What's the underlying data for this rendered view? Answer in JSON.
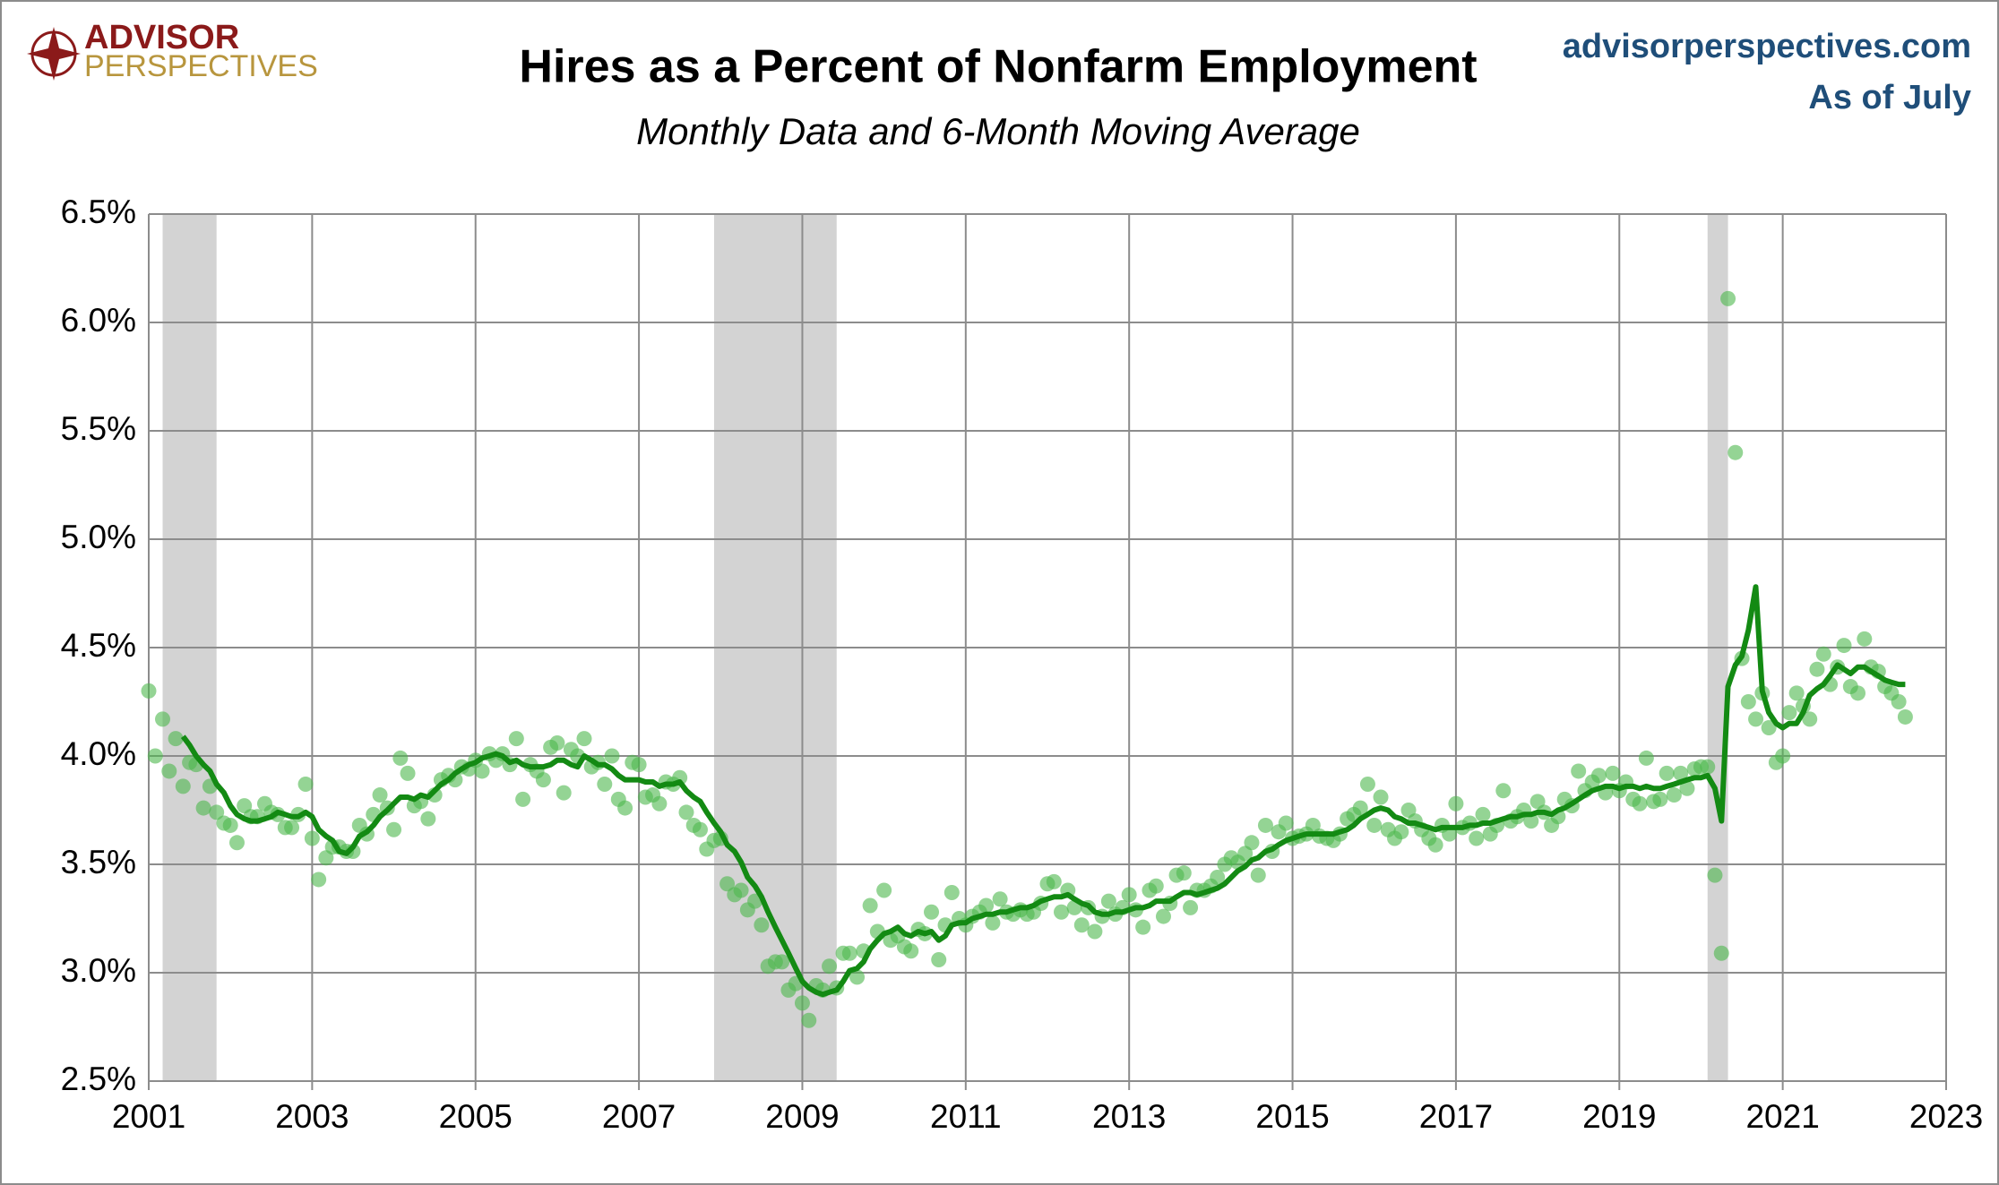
{
  "logo": {
    "line1": "ADVISOR",
    "line2": "PERSPECTIVES"
  },
  "site": "advisorperspectives.com",
  "as_of": "As of July",
  "chart_data": {
    "type": "scatter",
    "title": "Hires as a Percent of Nonfarm Employment",
    "subtitle": "Monthly Data and 6-Month Moving Average",
    "xlim": [
      2001,
      2023
    ],
    "xticks": [
      2001,
      2003,
      2005,
      2007,
      2009,
      2011,
      2013,
      2015,
      2017,
      2019,
      2021,
      2023
    ],
    "ylim": [
      2.5,
      6.5
    ],
    "yticks": [
      {
        "value": 2.5,
        "label": "2.5%"
      },
      {
        "value": 3.0,
        "label": "3.0%"
      },
      {
        "value": 3.5,
        "label": "3.5%"
      },
      {
        "value": 4.0,
        "label": "4.0%"
      },
      {
        "value": 4.5,
        "label": "4.5%"
      },
      {
        "value": 5.0,
        "label": "5.0%"
      },
      {
        "value": 5.5,
        "label": "5.5%"
      },
      {
        "value": 6.0,
        "label": "6.0%"
      },
      {
        "value": 6.5,
        "label": "6.5%"
      }
    ],
    "grid": true,
    "recessions": [
      [
        2001.17,
        2001.83
      ],
      [
        2007.92,
        2009.42
      ],
      [
        2020.08,
        2020.33
      ]
    ],
    "recession_color": "#d3d3d3",
    "x": [
      2001,
      2001.08,
      2001.17,
      2001.25,
      2001.33,
      2001.42,
      2001.5,
      2001.58,
      2001.67,
      2001.75,
      2001.83,
      2001.92,
      2002,
      2002.08,
      2002.17,
      2002.25,
      2002.33,
      2002.42,
      2002.5,
      2002.58,
      2002.67,
      2002.75,
      2002.83,
      2002.92,
      2003,
      2003.08,
      2003.17,
      2003.25,
      2003.33,
      2003.42,
      2003.5,
      2003.58,
      2003.67,
      2003.75,
      2003.83,
      2003.92,
      2004,
      2004.08,
      2004.17,
      2004.25,
      2004.33,
      2004.42,
      2004.5,
      2004.58,
      2004.67,
      2004.75,
      2004.83,
      2004.92,
      2005,
      2005.08,
      2005.17,
      2005.25,
      2005.33,
      2005.42,
      2005.5,
      2005.58,
      2005.67,
      2005.75,
      2005.83,
      2005.92,
      2006,
      2006.08,
      2006.17,
      2006.25,
      2006.33,
      2006.42,
      2006.5,
      2006.58,
      2006.67,
      2006.75,
      2006.83,
      2006.92,
      2007,
      2007.08,
      2007.17,
      2007.25,
      2007.33,
      2007.42,
      2007.5,
      2007.58,
      2007.67,
      2007.75,
      2007.83,
      2007.92,
      2008,
      2008.08,
      2008.17,
      2008.25,
      2008.33,
      2008.42,
      2008.5,
      2008.58,
      2008.67,
      2008.75,
      2008.83,
      2008.92,
      2009,
      2009.08,
      2009.17,
      2009.25,
      2009.33,
      2009.42,
      2009.5,
      2009.58,
      2009.67,
      2009.75,
      2009.83,
      2009.92,
      2010,
      2010.08,
      2010.17,
      2010.25,
      2010.33,
      2010.42,
      2010.5,
      2010.58,
      2010.67,
      2010.75,
      2010.83,
      2010.92,
      2011,
      2011.08,
      2011.17,
      2011.25,
      2011.33,
      2011.42,
      2011.5,
      2011.58,
      2011.67,
      2011.75,
      2011.83,
      2011.92,
      2012,
      2012.08,
      2012.17,
      2012.25,
      2012.33,
      2012.42,
      2012.5,
      2012.58,
      2012.67,
      2012.75,
      2012.83,
      2012.92,
      2013,
      2013.08,
      2013.17,
      2013.25,
      2013.33,
      2013.42,
      2013.5,
      2013.58,
      2013.67,
      2013.75,
      2013.83,
      2013.92,
      2014,
      2014.08,
      2014.17,
      2014.25,
      2014.33,
      2014.42,
      2014.5,
      2014.58,
      2014.67,
      2014.75,
      2014.83,
      2014.92,
      2015,
      2015.08,
      2015.17,
      2015.25,
      2015.33,
      2015.42,
      2015.5,
      2015.58,
      2015.67,
      2015.75,
      2015.83,
      2015.92,
      2016,
      2016.08,
      2016.17,
      2016.25,
      2016.33,
      2016.42,
      2016.5,
      2016.58,
      2016.67,
      2016.75,
      2016.83,
      2016.92,
      2017,
      2017.08,
      2017.17,
      2017.25,
      2017.33,
      2017.42,
      2017.5,
      2017.58,
      2017.67,
      2017.75,
      2017.83,
      2017.92,
      2018,
      2018.08,
      2018.17,
      2018.25,
      2018.33,
      2018.42,
      2018.5,
      2018.58,
      2018.67,
      2018.75,
      2018.83,
      2018.92,
      2019,
      2019.08,
      2019.17,
      2019.25,
      2019.33,
      2019.42,
      2019.5,
      2019.58,
      2019.67,
      2019.75,
      2019.83,
      2019.92,
      2020,
      2020.08,
      2020.17,
      2020.25,
      2020.33,
      2020.42,
      2020.5,
      2020.58,
      2020.67,
      2020.75,
      2020.83,
      2020.92,
      2021,
      2021.08,
      2021.17,
      2021.25,
      2021.33,
      2021.42,
      2021.5,
      2021.58,
      2021.67,
      2021.75,
      2021.83,
      2021.92,
      2022,
      2022.08,
      2022.17,
      2022.25,
      2022.33,
      2022.42,
      2022.5
    ],
    "series": [
      {
        "name": "Monthly Data",
        "color": "#4cb84c",
        "style": "dots",
        "values": [
          4.3,
          4.0,
          4.17,
          3.93,
          4.08,
          3.86,
          3.97,
          3.96,
          3.76,
          3.86,
          3.74,
          3.69,
          3.68,
          3.6,
          3.77,
          3.72,
          3.72,
          3.78,
          3.74,
          3.73,
          3.67,
          3.67,
          3.73,
          3.87,
          3.62,
          3.43,
          3.53,
          3.58,
          3.58,
          3.56,
          3.56,
          3.68,
          3.64,
          3.73,
          3.82,
          3.76,
          3.66,
          3.99,
          3.92,
          3.77,
          3.79,
          3.71,
          3.82,
          3.89,
          3.91,
          3.89,
          3.95,
          3.94,
          3.98,
          3.93,
          4.01,
          3.98,
          4.01,
          3.96,
          4.08,
          3.8,
          3.96,
          3.93,
          3.89,
          4.04,
          4.06,
          3.83,
          4.03,
          4.0,
          4.08,
          3.95,
          3.97,
          3.87,
          4.0,
          3.8,
          3.76,
          3.97,
          3.96,
          3.81,
          3.82,
          3.78,
          3.88,
          3.87,
          3.9,
          3.74,
          3.68,
          3.66,
          3.57,
          3.61,
          3.62,
          3.41,
          3.36,
          3.38,
          3.29,
          3.33,
          3.22,
          3.03,
          3.05,
          3.05,
          2.92,
          2.95,
          2.86,
          2.78,
          2.94,
          2.92,
          3.03,
          2.93,
          3.09,
          3.09,
          2.98,
          3.1,
          3.31,
          3.19,
          3.38,
          3.15,
          3.17,
          3.12,
          3.1,
          3.2,
          3.18,
          3.28,
          3.06,
          3.22,
          3.37,
          3.25,
          3.22,
          3.26,
          3.28,
          3.31,
          3.23,
          3.34,
          3.28,
          3.27,
          3.29,
          3.27,
          3.28,
          3.32,
          3.41,
          3.42,
          3.28,
          3.38,
          3.3,
          3.22,
          3.3,
          3.19,
          3.26,
          3.33,
          3.27,
          3.3,
          3.36,
          3.29,
          3.21,
          3.38,
          3.4,
          3.26,
          3.32,
          3.45,
          3.46,
          3.3,
          3.38,
          3.38,
          3.4,
          3.44,
          3.5,
          3.53,
          3.51,
          3.55,
          3.6,
          3.45,
          3.68,
          3.56,
          3.65,
          3.69,
          3.62,
          3.63,
          3.64,
          3.68,
          3.63,
          3.62,
          3.61,
          3.64,
          3.71,
          3.73,
          3.76,
          3.87,
          3.68,
          3.81,
          3.66,
          3.62,
          3.65,
          3.75,
          3.7,
          3.66,
          3.62,
          3.59,
          3.68,
          3.64,
          3.78,
          3.67,
          3.69,
          3.62,
          3.73,
          3.64,
          3.68,
          3.84,
          3.7,
          3.72,
          3.75,
          3.7,
          3.79,
          3.74,
          3.68,
          3.72,
          3.8,
          3.77,
          3.93,
          3.84,
          3.88,
          3.91,
          3.83,
          3.92,
          3.84,
          3.88,
          3.8,
          3.78,
          3.99,
          3.79,
          3.8,
          3.92,
          3.82,
          3.92,
          3.85,
          3.94,
          3.95,
          3.95,
          3.45,
          3.09,
          6.11,
          5.4,
          4.45,
          4.25,
          4.17,
          4.29,
          4.13,
          3.97,
          4.0,
          4.2,
          4.29,
          4.23,
          4.17,
          4.4,
          4.47,
          4.33,
          4.41,
          4.51,
          4.32,
          4.29,
          4.54,
          4.41,
          4.39,
          4.32,
          4.29,
          4.25,
          4.18
        ]
      },
      {
        "name": "6-Month Moving Average",
        "color": "#138a13",
        "style": "line",
        "values": [
          null,
          null,
          null,
          null,
          null,
          4.09,
          4.05,
          4.0,
          3.96,
          3.93,
          3.87,
          3.83,
          3.77,
          3.73,
          3.71,
          3.7,
          3.7,
          3.71,
          3.72,
          3.74,
          3.73,
          3.72,
          3.72,
          3.74,
          3.72,
          3.66,
          3.63,
          3.61,
          3.56,
          3.55,
          3.58,
          3.63,
          3.65,
          3.68,
          3.72,
          3.75,
          3.78,
          3.81,
          3.81,
          3.8,
          3.82,
          3.81,
          3.84,
          3.87,
          3.89,
          3.92,
          3.94,
          3.96,
          3.97,
          3.99,
          4.0,
          4.01,
          4.0,
          3.97,
          3.98,
          3.96,
          3.95,
          3.95,
          3.95,
          3.96,
          3.98,
          3.98,
          3.96,
          3.95,
          4.0,
          3.98,
          3.96,
          3.96,
          3.94,
          3.91,
          3.89,
          3.89,
          3.89,
          3.88,
          3.88,
          3.86,
          3.87,
          3.87,
          3.88,
          3.84,
          3.81,
          3.79,
          3.74,
          3.69,
          3.65,
          3.59,
          3.56,
          3.51,
          3.44,
          3.4,
          3.35,
          3.28,
          3.21,
          3.15,
          3.09,
          3.02,
          2.96,
          2.93,
          2.91,
          2.9,
          2.91,
          2.92,
          2.96,
          3.01,
          3.02,
          3.05,
          3.11,
          3.15,
          3.18,
          3.19,
          3.21,
          3.18,
          3.17,
          3.19,
          3.18,
          3.19,
          3.15,
          3.17,
          3.22,
          3.23,
          3.23,
          3.25,
          3.26,
          3.27,
          3.27,
          3.28,
          3.28,
          3.29,
          3.3,
          3.3,
          3.31,
          3.33,
          3.34,
          3.35,
          3.35,
          3.36,
          3.34,
          3.32,
          3.31,
          3.28,
          3.27,
          3.27,
          3.28,
          3.28,
          3.29,
          3.3,
          3.3,
          3.31,
          3.33,
          3.33,
          3.33,
          3.35,
          3.37,
          3.37,
          3.36,
          3.37,
          3.38,
          3.39,
          3.41,
          3.44,
          3.47,
          3.49,
          3.52,
          3.53,
          3.56,
          3.57,
          3.59,
          3.61,
          3.62,
          3.63,
          3.64,
          3.64,
          3.64,
          3.64,
          3.64,
          3.65,
          3.66,
          3.68,
          3.71,
          3.73,
          3.75,
          3.76,
          3.75,
          3.72,
          3.71,
          3.69,
          3.69,
          3.68,
          3.67,
          3.66,
          3.67,
          3.67,
          3.67,
          3.67,
          3.68,
          3.68,
          3.69,
          3.69,
          3.7,
          3.71,
          3.72,
          3.72,
          3.73,
          3.73,
          3.74,
          3.74,
          3.73,
          3.75,
          3.76,
          3.78,
          3.8,
          3.82,
          3.84,
          3.85,
          3.86,
          3.86,
          3.85,
          3.86,
          3.86,
          3.85,
          3.86,
          3.85,
          3.85,
          3.86,
          3.87,
          3.88,
          3.89,
          3.9,
          3.9,
          3.91,
          3.85,
          3.7,
          4.32,
          4.42,
          4.46,
          4.58,
          4.78,
          4.3,
          4.2,
          4.15,
          4.13,
          4.15,
          4.15,
          4.2,
          4.28,
          4.31,
          4.33,
          4.37,
          4.42,
          4.4,
          4.38,
          4.41,
          4.41,
          4.39,
          4.37,
          4.35,
          4.34,
          4.33,
          4.33
        ]
      }
    ]
  }
}
